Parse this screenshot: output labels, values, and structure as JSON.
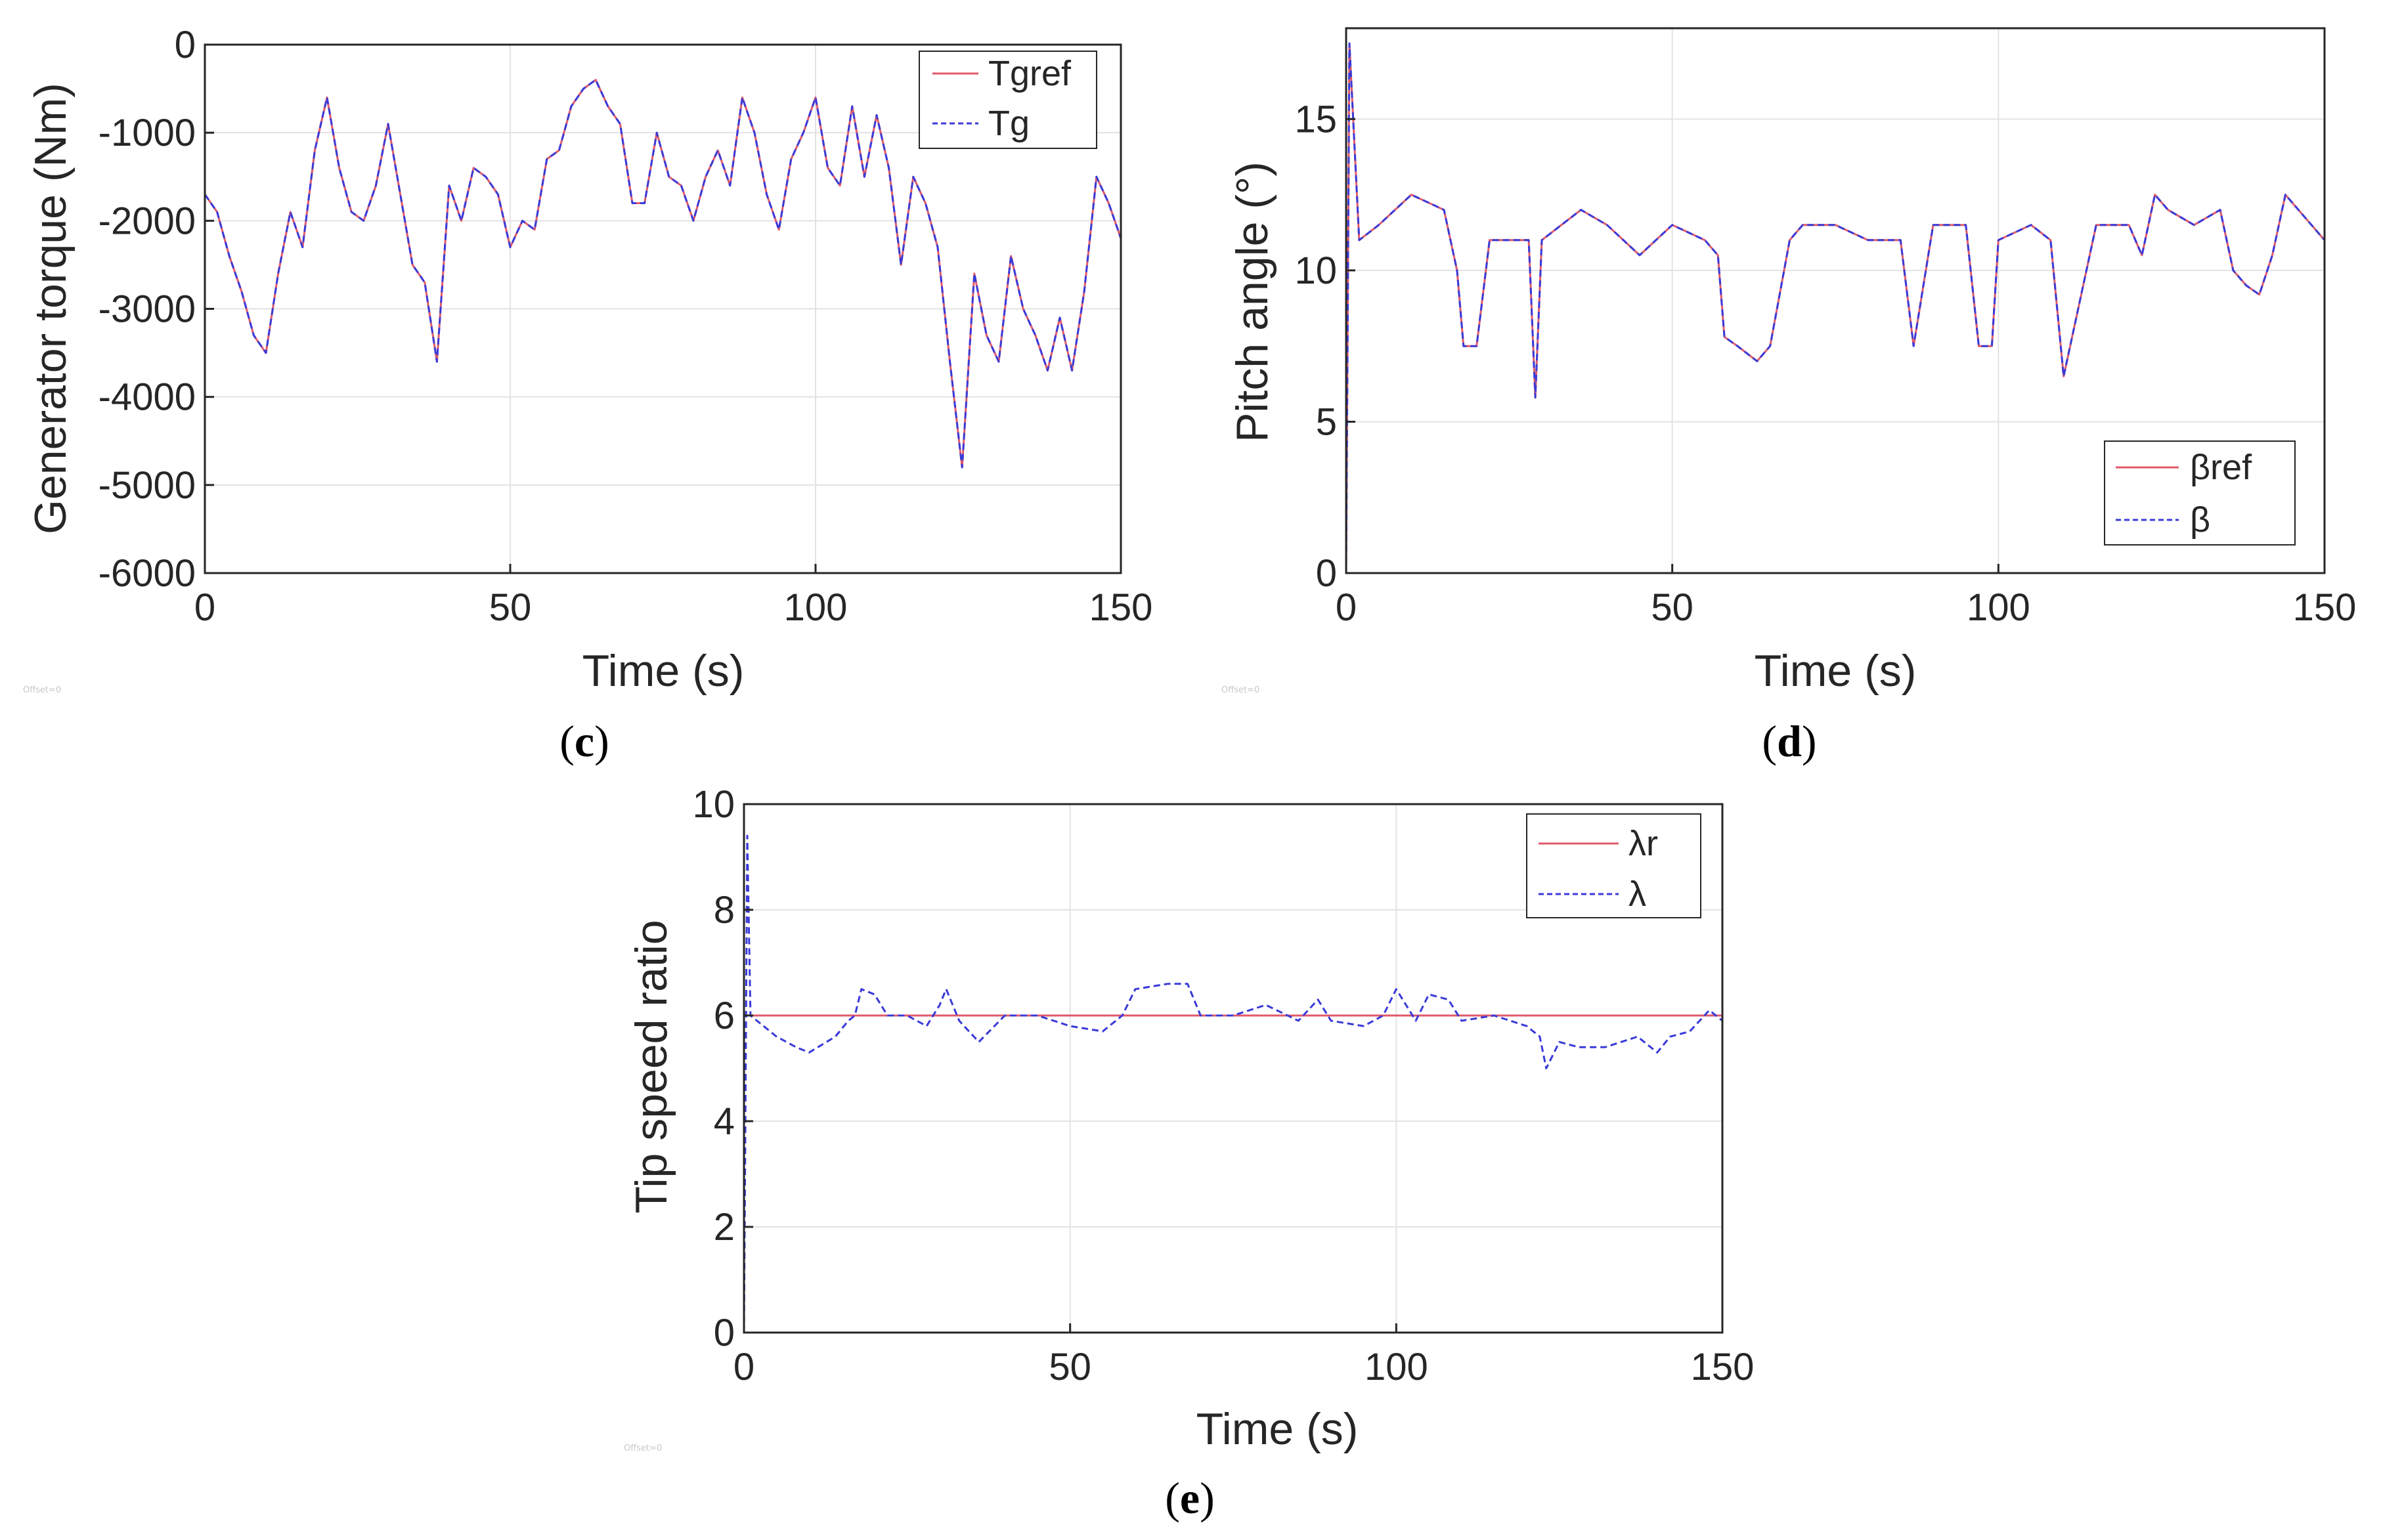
{
  "colors": {
    "reference": "#e05a6a",
    "measured": "#3a3ad8",
    "purple": "#7b2a8c",
    "grid": "#e3e3e3",
    "axis": "#262626"
  },
  "chart_data": [
    {
      "id": "c",
      "type": "line",
      "caption_letter": "c",
      "title": "",
      "xlabel": "Time (s)",
      "ylabel": "Generator torque (Nm)",
      "xlim": [
        0,
        150
      ],
      "ylim": [
        -6000,
        0
      ],
      "xticks": [
        0,
        50,
        100,
        150
      ],
      "yticks": [
        0,
        -1000,
        -2000,
        -3000,
        -4000,
        -5000,
        -6000
      ],
      "xtick_labels": [
        "0",
        "50",
        "100",
        "150"
      ],
      "ytick_labels": [
        "0",
        "-1000",
        "-2000",
        "-3000",
        "-4000",
        "-5000",
        "-6000"
      ],
      "grid": true,
      "legend_position": "top-right",
      "offset_note": "Offset=0",
      "series": [
        {
          "name": "Tgref",
          "style": "solid",
          "color": "#e05a6a",
          "x": [
            0,
            2,
            4,
            6,
            8,
            10,
            12,
            14,
            16,
            18,
            20,
            22,
            24,
            26,
            28,
            30,
            32,
            34,
            36,
            38,
            40,
            42,
            44,
            46,
            48,
            50,
            52,
            54,
            56,
            58,
            60,
            62,
            64,
            66,
            68,
            70,
            72,
            74,
            76,
            78,
            80,
            82,
            84,
            86,
            88,
            90,
            92,
            94,
            96,
            98,
            100,
            102,
            104,
            106,
            108,
            110,
            112,
            114,
            116,
            118,
            120,
            122,
            124,
            126,
            128,
            130,
            132,
            134,
            136,
            138,
            140,
            142,
            144,
            146,
            148,
            150
          ],
          "y": [
            -1700,
            -1900,
            -2400,
            -2800,
            -3300,
            -3500,
            -2600,
            -1900,
            -2300,
            -1200,
            -600,
            -1400,
            -1900,
            -2000,
            -1600,
            -900,
            -1700,
            -2500,
            -2700,
            -3600,
            -1600,
            -2000,
            -1400,
            -1500,
            -1700,
            -2300,
            -2000,
            -2100,
            -1300,
            -1200,
            -700,
            -500,
            -400,
            -700,
            -900,
            -1800,
            -1800,
            -1000,
            -1500,
            -1600,
            -2000,
            -1500,
            -1200,
            -1600,
            -600,
            -1000,
            -1700,
            -2100,
            -1300,
            -1000,
            -600,
            -1400,
            -1600,
            -700,
            -1500,
            -800,
            -1400,
            -2500,
            -1500,
            -1800,
            -2300,
            -3600,
            -4800,
            -2600,
            -3300,
            -3600,
            -2400,
            -3000,
            -3300,
            -3700,
            -3100,
            -3700,
            -2800,
            -1500,
            -1800,
            -2200
          ]
        },
        {
          "name": "Tg",
          "style": "dashed",
          "color": "#3a3ad8",
          "x": [
            0,
            2,
            4,
            6,
            8,
            10,
            12,
            14,
            16,
            18,
            20,
            22,
            24,
            26,
            28,
            30,
            32,
            34,
            36,
            38,
            40,
            42,
            44,
            46,
            48,
            50,
            52,
            54,
            56,
            58,
            60,
            62,
            64,
            66,
            68,
            70,
            72,
            74,
            76,
            78,
            80,
            82,
            84,
            86,
            88,
            90,
            92,
            94,
            96,
            98,
            100,
            102,
            104,
            106,
            108,
            110,
            112,
            114,
            116,
            118,
            120,
            122,
            124,
            126,
            128,
            130,
            132,
            134,
            136,
            138,
            140,
            142,
            144,
            146,
            148,
            150
          ],
          "y": [
            -1700,
            -1900,
            -2400,
            -2800,
            -3300,
            -3500,
            -2600,
            -1900,
            -2300,
            -1200,
            -600,
            -1400,
            -1900,
            -2000,
            -1600,
            -900,
            -1700,
            -2500,
            -2700,
            -3600,
            -1600,
            -2000,
            -1400,
            -1500,
            -1700,
            -2300,
            -2000,
            -2100,
            -1300,
            -1200,
            -700,
            -500,
            -400,
            -700,
            -900,
            -1800,
            -1800,
            -1000,
            -1500,
            -1600,
            -2000,
            -1500,
            -1200,
            -1600,
            -600,
            -1000,
            -1700,
            -2100,
            -1300,
            -1000,
            -600,
            -1400,
            -1600,
            -700,
            -1500,
            -800,
            -1400,
            -2500,
            -1500,
            -1800,
            -2300,
            -3600,
            -4800,
            -2600,
            -3300,
            -3600,
            -2400,
            -3000,
            -3300,
            -3700,
            -3100,
            -3700,
            -2800,
            -1500,
            -1800,
            -2200
          ]
        }
      ]
    },
    {
      "id": "d",
      "type": "line",
      "caption_letter": "d",
      "title": "",
      "xlabel": "Time (s)",
      "ylabel": "Pitch angle (°)",
      "xlim": [
        0,
        150
      ],
      "ylim": [
        0,
        18
      ],
      "xticks": [
        0,
        50,
        100,
        150
      ],
      "yticks": [
        0,
        5,
        10,
        15
      ],
      "xtick_labels": [
        "0",
        "50",
        "100",
        "150"
      ],
      "ytick_labels": [
        "0",
        "5",
        "10",
        "15"
      ],
      "grid": true,
      "legend_position": "bottom-right",
      "offset_note": "Offset=0",
      "series": [
        {
          "name": "βref",
          "style": "solid",
          "color": "#e05a6a",
          "x": [
            0,
            0.5,
            2,
            5,
            10,
            15,
            17,
            18,
            20,
            22,
            25,
            28,
            29,
            30,
            33,
            36,
            40,
            45,
            50,
            55,
            57,
            58,
            60,
            63,
            65,
            68,
            70,
            75,
            80,
            85,
            87,
            90,
            95,
            97,
            99,
            100,
            105,
            108,
            110,
            115,
            120,
            122,
            124,
            126,
            130,
            134,
            136,
            138,
            140,
            142,
            144,
            146,
            148,
            150
          ],
          "y": [
            0,
            17.5,
            11,
            11.5,
            12.5,
            12,
            10,
            7.5,
            7.5,
            11,
            11,
            11,
            5.8,
            11,
            11.5,
            12,
            11.5,
            10.5,
            11.5,
            11,
            10.5,
            7.8,
            7.5,
            7,
            7.5,
            11,
            11.5,
            11.5,
            11,
            11,
            7.5,
            11.5,
            11.5,
            7.5,
            7.5,
            11,
            11.5,
            11,
            6.5,
            11.5,
            11.5,
            10.5,
            12.5,
            12,
            11.5,
            12,
            10,
            9.5,
            9.2,
            10.5,
            12.5,
            12,
            11.5,
            11
          ]
        },
        {
          "name": "β",
          "style": "dashed",
          "color": "#3a3ad8",
          "x": [
            0,
            0.5,
            2,
            5,
            10,
            15,
            17,
            18,
            20,
            22,
            25,
            28,
            29,
            30,
            33,
            36,
            40,
            45,
            50,
            55,
            57,
            58,
            60,
            63,
            65,
            68,
            70,
            75,
            80,
            85,
            87,
            90,
            95,
            97,
            99,
            100,
            105,
            108,
            110,
            115,
            120,
            122,
            124,
            126,
            130,
            134,
            136,
            138,
            140,
            142,
            144,
            146,
            148,
            150
          ],
          "y": [
            0,
            17.5,
            11,
            11.5,
            12.5,
            12,
            10,
            7.5,
            7.5,
            11,
            11,
            11,
            5.8,
            11,
            11.5,
            12,
            11.5,
            10.5,
            11.5,
            11,
            10.5,
            7.8,
            7.5,
            7,
            7.5,
            11,
            11.5,
            11.5,
            11,
            11,
            7.5,
            11.5,
            11.5,
            7.5,
            7.5,
            11,
            11.5,
            11,
            6.5,
            11.5,
            11.5,
            10.5,
            12.5,
            12,
            11.5,
            12,
            10,
            9.5,
            9.2,
            10.5,
            12.5,
            12,
            11.5,
            11
          ]
        }
      ]
    },
    {
      "id": "e",
      "type": "line",
      "caption_letter": "e",
      "title": "",
      "xlabel": "Time (s)",
      "ylabel": "Tip speed ratio",
      "xlim": [
        0,
        150
      ],
      "ylim": [
        0,
        10
      ],
      "xticks": [
        0,
        50,
        100,
        150
      ],
      "yticks": [
        0,
        2,
        4,
        6,
        8,
        10
      ],
      "xtick_labels": [
        "0",
        "50",
        "100",
        "150"
      ],
      "ytick_labels": [
        "0",
        "2",
        "4",
        "6",
        "8",
        "10"
      ],
      "grid": true,
      "legend_position": "top-right",
      "offset_note": "Offset=0",
      "series": [
        {
          "name": "λr",
          "style": "solid",
          "color": "#e05a6a",
          "x": [
            0,
            150
          ],
          "y": [
            6,
            6
          ]
        },
        {
          "name": "λ",
          "style": "dashed",
          "color": "#3a3ad8",
          "x": [
            0,
            0.5,
            1,
            3,
            5,
            8,
            10,
            14,
            16,
            17,
            18,
            20,
            22,
            25,
            28,
            30,
            31,
            33,
            36,
            40,
            45,
            50,
            55,
            58,
            60,
            65,
            68,
            70,
            75,
            80,
            85,
            88,
            90,
            95,
            98,
            100,
            103,
            105,
            108,
            110,
            115,
            120,
            122,
            123,
            125,
            128,
            132,
            137,
            140,
            142,
            145,
            148,
            150
          ],
          "y": [
            0,
            9.4,
            6,
            5.8,
            5.6,
            5.4,
            5.3,
            5.6,
            5.9,
            6.0,
            6.5,
            6.4,
            6.0,
            6.0,
            5.8,
            6.2,
            6.5,
            5.9,
            5.5,
            6.0,
            6.0,
            5.8,
            5.7,
            6.0,
            6.5,
            6.6,
            6.6,
            6.0,
            6.0,
            6.2,
            5.9,
            6.3,
            5.9,
            5.8,
            6.0,
            6.5,
            5.9,
            6.4,
            6.3,
            5.9,
            6.0,
            5.8,
            5.6,
            5.0,
            5.5,
            5.4,
            5.4,
            5.6,
            5.3,
            5.6,
            5.7,
            6.1,
            5.9
          ]
        }
      ]
    }
  ]
}
